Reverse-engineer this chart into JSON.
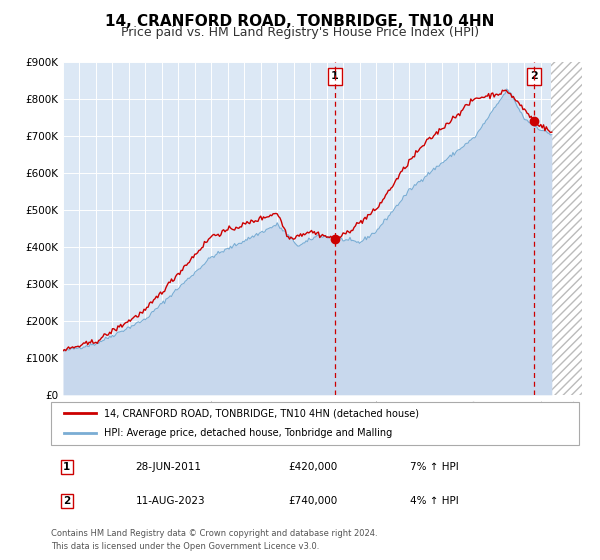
{
  "title": "14, CRANFORD ROAD, TONBRIDGE, TN10 4HN",
  "subtitle": "Price paid vs. HM Land Registry's House Price Index (HPI)",
  "title_fontsize": 11,
  "subtitle_fontsize": 9,
  "bg_color": "#ffffff",
  "plot_bg_color": "#dce8f5",
  "grid_color": "#ffffff",
  "yticks": [
    0,
    100000,
    200000,
    300000,
    400000,
    500000,
    600000,
    700000,
    800000,
    900000
  ],
  "ytick_labels": [
    "£0",
    "£100K",
    "£200K",
    "£300K",
    "£400K",
    "£500K",
    "£600K",
    "£700K",
    "£800K",
    "£900K"
  ],
  "xmin": 1995.0,
  "xmax": 2026.5,
  "ymin": 0,
  "ymax": 900000,
  "data_end_year": 2024.6,
  "annotation1": {
    "x": 2011.49,
    "label": "1",
    "date": "28-JUN-2011",
    "price": "£420,000",
    "pct": "7% ↑ HPI"
  },
  "annotation2": {
    "x": 2023.61,
    "label": "2",
    "date": "11-AUG-2023",
    "price": "£740,000",
    "pct": "4% ↑ HPI"
  },
  "red_line_color": "#cc0000",
  "blue_line_color": "#7aadd4",
  "blue_fill_color": "#c8d8ed",
  "hatch_color": "#bbbbbb",
  "legend_line1": "14, CRANFORD ROAD, TONBRIDGE, TN10 4HN (detached house)",
  "legend_line2": "HPI: Average price, detached house, Tonbridge and Malling",
  "footer1": "Contains HM Land Registry data © Crown copyright and database right 2024.",
  "footer2": "This data is licensed under the Open Government Licence v3.0.",
  "sale1_y": 420000,
  "sale2_y": 740000,
  "marker_color": "#cc0000",
  "vline_color": "#cc0000",
  "box_edge_color": "#cc0000"
}
